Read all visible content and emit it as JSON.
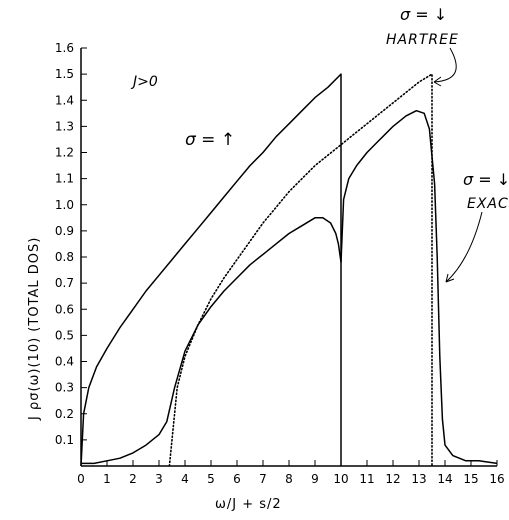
{
  "chart_data": {
    "type": "line",
    "title": "",
    "xlabel": "ω/J + s/2",
    "ylabel": "J ρσ(ω)(10) (TOTAL DOS)",
    "xlim": [
      0,
      16
    ],
    "ylim": [
      0,
      1.6
    ],
    "x_ticks": [
      "0",
      "1",
      "2",
      "3",
      "4",
      "5",
      "6",
      "7",
      "8",
      "9",
      "10",
      "11",
      "12",
      "13",
      "14",
      "15",
      "16"
    ],
    "y_ticks": [
      "0.1",
      "0.2",
      "0.3",
      "0.4",
      "0.5",
      "0.6",
      "0.7",
      "0.8",
      "0.9",
      "1.0",
      "1.1",
      "1.2",
      "1.3",
      "1.4",
      "1.5",
      "1.6"
    ],
    "grid": false,
    "annotations": {
      "condition": "J>0",
      "sigma_up": "σ = ↑",
      "sigma_down_hartree_top": "σ = ↓",
      "sigma_down_hartree_bottom": "HARTREE",
      "sigma_down_exact_top": "σ = ↓",
      "sigma_down_exact_bottom": "EXAC"
    },
    "series": [
      {
        "style": "solid",
        "x": [
          0,
          0.1,
          0.3,
          0.6,
          1,
          1.5,
          2,
          2.5,
          3,
          3.5,
          4,
          4.5,
          5,
          5.5,
          6,
          6.5,
          7,
          7.5,
          8,
          8.5,
          9,
          9.5,
          10,
          10
        ],
        "y": [
          0,
          0.2,
          0.3,
          0.38,
          0.45,
          0.53,
          0.6,
          0.67,
          0.73,
          0.79,
          0.85,
          0.91,
          0.97,
          1.03,
          1.09,
          1.15,
          1.2,
          1.26,
          1.31,
          1.36,
          1.41,
          1.45,
          1.5,
          0
        ]
      },
      {
        "style": "solid",
        "x": [
          0,
          0.5,
          1,
          1.5,
          2,
          2.5,
          3,
          3.3,
          3.6,
          4,
          4.5,
          5,
          5.5,
          6,
          6.5,
          7,
          7.5,
          8,
          8.5,
          9,
          9.3,
          9.6,
          9.8,
          9.9,
          10,
          10.1,
          10.3,
          10.6,
          11,
          11.5,
          12,
          12.5,
          12.9,
          13.2,
          13.4,
          13.6,
          13.7,
          13.8,
          13.9,
          14,
          14.3,
          14.8,
          15.3,
          16
        ],
        "y": [
          0.01,
          0.01,
          0.02,
          0.03,
          0.05,
          0.08,
          0.12,
          0.17,
          0.3,
          0.44,
          0.54,
          0.61,
          0.67,
          0.72,
          0.77,
          0.81,
          0.85,
          0.89,
          0.92,
          0.95,
          0.95,
          0.93,
          0.89,
          0.85,
          0.78,
          1.02,
          1.1,
          1.15,
          1.2,
          1.25,
          1.3,
          1.34,
          1.36,
          1.35,
          1.29,
          1.08,
          0.8,
          0.42,
          0.18,
          0.08,
          0.04,
          0.02,
          0.02,
          0.01
        ]
      },
      {
        "style": "dotted",
        "x": [
          3.4,
          3.5,
          3.7,
          4,
          4.5,
          5,
          5.5,
          6,
          6.5,
          7,
          7.5,
          8,
          8.5,
          9,
          9.5,
          10,
          10.5,
          11,
          11.5,
          12,
          12.5,
          13,
          13.5,
          13.5
        ],
        "y": [
          0,
          0.1,
          0.3,
          0.42,
          0.54,
          0.64,
          0.72,
          0.79,
          0.86,
          0.93,
          0.99,
          1.05,
          1.1,
          1.15,
          1.19,
          1.23,
          1.27,
          1.31,
          1.35,
          1.39,
          1.43,
          1.47,
          1.5,
          0
        ]
      }
    ]
  }
}
